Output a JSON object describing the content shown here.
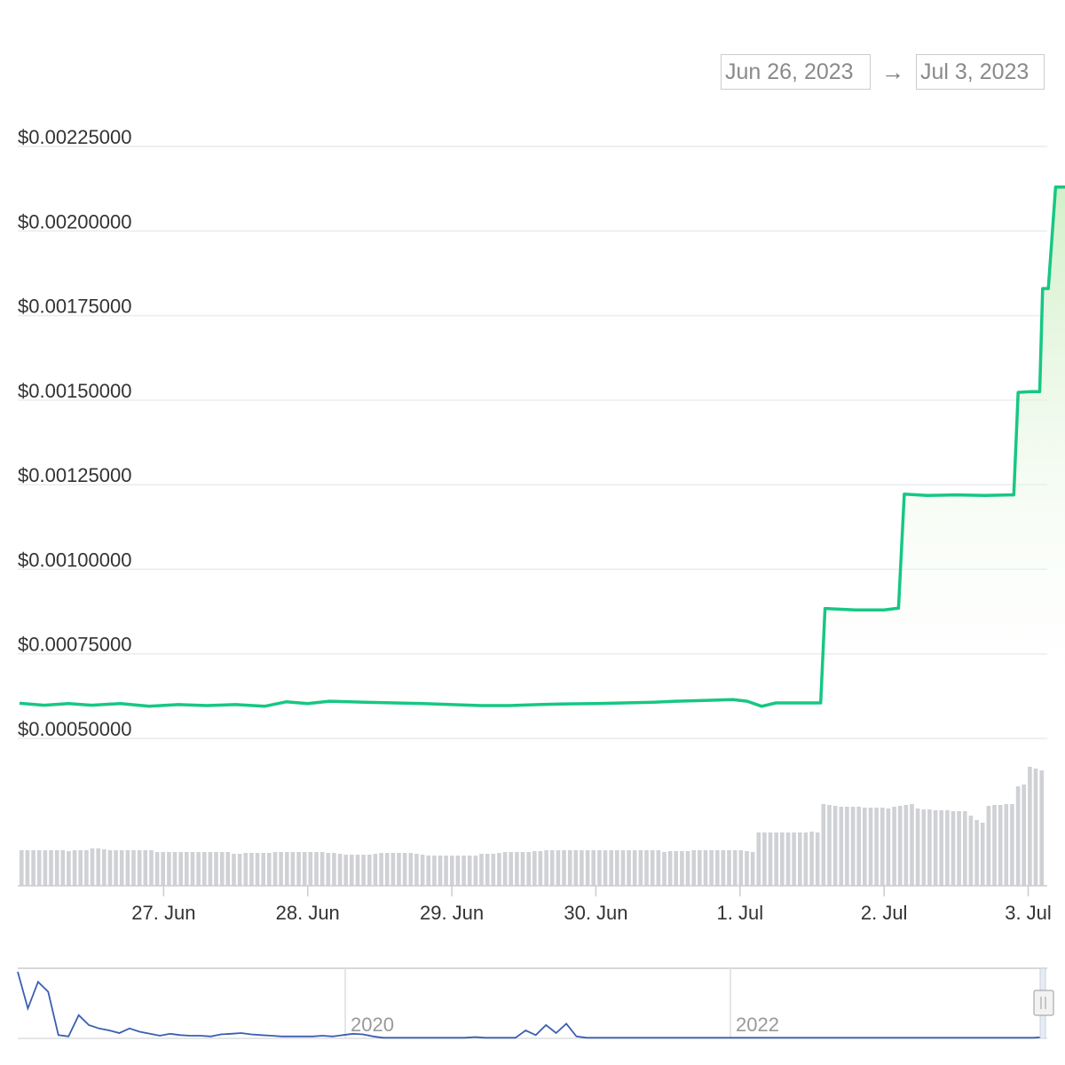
{
  "date_range": {
    "from": "Jun 26, 2023",
    "arrow": "→",
    "to": "Jul 3, 2023"
  },
  "colors": {
    "price_line": "#16c784",
    "area_top": "#d9f0d0",
    "volume_bar": "#cfd1d5",
    "navigator_line": "#3a5fb0",
    "grid": "#e9ecef"
  },
  "chart_data": [
    {
      "type": "area",
      "title": "",
      "xlabel": "",
      "ylabel": "",
      "ylim": [
        0.0005,
        0.00225
      ],
      "y_ticks": [
        "$0.00225000",
        "$0.00200000",
        "$0.00175000",
        "$0.00150000",
        "$0.00125000",
        "$0.00100000",
        "$0.00075000",
        "$0.00050000"
      ],
      "y_tick_values": [
        0.00225,
        0.002,
        0.00175,
        0.0015,
        0.00125,
        0.001,
        0.00075,
        0.0005
      ],
      "x_ticks": [
        "27. Jun",
        "28. Jun",
        "29. Jun",
        "30. Jun",
        "1. Jul",
        "2. Jul",
        "3. Jul"
      ],
      "x_tick_days": [
        1,
        2,
        3,
        4,
        5,
        6,
        7
      ],
      "x_range_days": [
        0.0,
        7.12
      ],
      "x_unit": "days after Jun 26, 2023 00:00",
      "grid": true,
      "series": [
        {
          "values": [
            [
              0.0,
              0.000604
            ],
            [
              0.17,
              0.000598
            ],
            [
              0.34,
              0.000603
            ],
            [
              0.5,
              0.000598
            ],
            [
              0.7,
              0.000603
            ],
            [
              0.9,
              0.000595
            ],
            [
              1.1,
              0.0006
            ],
            [
              1.3,
              0.000597
            ],
            [
              1.5,
              0.0006
            ],
            [
              1.7,
              0.000595
            ],
            [
              1.85,
              0.000608
            ],
            [
              2.0,
              0.000603
            ],
            [
              2.15,
              0.00061
            ],
            [
              2.4,
              0.000607
            ],
            [
              2.6,
              0.000605
            ],
            [
              2.8,
              0.000603
            ],
            [
              3.0,
              0.0006
            ],
            [
              3.2,
              0.000597
            ],
            [
              3.4,
              0.000597
            ],
            [
              3.6,
              0.0006
            ],
            [
              3.8,
              0.000602
            ],
            [
              4.0,
              0.000603
            ],
            [
              4.2,
              0.000605
            ],
            [
              4.4,
              0.000607
            ],
            [
              4.55,
              0.00061
            ],
            [
              4.75,
              0.000612
            ],
            [
              4.95,
              0.000615
            ],
            [
              5.05,
              0.00061
            ],
            [
              5.15,
              0.000595
            ],
            [
              5.25,
              0.000605
            ],
            [
              5.4,
              0.000605
            ],
            [
              5.56,
              0.000605
            ],
            [
              5.59,
              0.000884
            ],
            [
              5.8,
              0.00088
            ],
            [
              6.0,
              0.00088
            ],
            [
              6.1,
              0.000885
            ],
            [
              6.14,
              0.001222
            ],
            [
              6.3,
              0.001218
            ],
            [
              6.5,
              0.00122
            ],
            [
              6.7,
              0.001218
            ],
            [
              6.87,
              0.00122
            ],
            [
              6.9,
              0.00122
            ],
            [
              6.93,
              0.001523
            ],
            [
              7.02,
              0.001525
            ],
            [
              7.08,
              0.001525
            ],
            [
              7.1,
              0.00183
            ],
            [
              7.14,
              0.00183
            ],
            [
              7.19,
              0.00213
            ],
            [
              7.27,
              0.00213
            ]
          ]
        }
      ]
    },
    {
      "type": "bar",
      "title": "",
      "series": [
        {
          "name": "",
          "values": [
            0.4,
            0.4,
            0.4,
            0.4,
            0.4,
            0.4,
            0.4,
            0.4,
            0.39,
            0.4,
            0.4,
            0.4,
            0.42,
            0.42,
            0.41,
            0.4,
            0.4,
            0.4,
            0.4,
            0.4,
            0.4,
            0.4,
            0.4,
            0.38,
            0.38,
            0.38,
            0.38,
            0.38,
            0.38,
            0.38,
            0.38,
            0.38,
            0.38,
            0.38,
            0.38,
            0.38,
            0.36,
            0.36,
            0.37,
            0.37,
            0.37,
            0.37,
            0.37,
            0.38,
            0.38,
            0.38,
            0.38,
            0.38,
            0.38,
            0.38,
            0.38,
            0.38,
            0.37,
            0.37,
            0.36,
            0.35,
            0.35,
            0.35,
            0.35,
            0.35,
            0.36,
            0.37,
            0.37,
            0.37,
            0.37,
            0.37,
            0.37,
            0.36,
            0.35,
            0.34,
            0.34,
            0.34,
            0.34,
            0.34,
            0.34,
            0.34,
            0.34,
            0.34,
            0.36,
            0.36,
            0.36,
            0.37,
            0.38,
            0.38,
            0.38,
            0.38,
            0.38,
            0.39,
            0.39,
            0.4,
            0.4,
            0.4,
            0.4,
            0.4,
            0.4,
            0.4,
            0.4,
            0.4,
            0.4,
            0.4,
            0.4,
            0.4,
            0.4,
            0.4,
            0.4,
            0.4,
            0.4,
            0.4,
            0.4,
            0.38,
            0.39,
            0.39,
            0.39,
            0.39,
            0.4,
            0.4,
            0.4,
            0.4,
            0.4,
            0.4,
            0.4,
            0.4,
            0.4,
            0.39,
            0.38,
            0.6,
            0.6,
            0.6,
            0.6,
            0.6,
            0.6,
            0.6,
            0.6,
            0.6,
            0.61,
            0.6,
            0.92,
            0.91,
            0.9,
            0.89,
            0.89,
            0.89,
            0.89,
            0.88,
            0.88,
            0.88,
            0.88,
            0.87,
            0.89,
            0.9,
            0.91,
            0.92,
            0.87,
            0.86,
            0.86,
            0.85,
            0.85,
            0.85,
            0.84,
            0.84,
            0.84,
            0.79,
            0.74,
            0.71,
            0.9,
            0.91,
            0.91,
            0.92,
            0.92,
            1.12,
            1.14,
            1.34,
            1.32,
            1.3
          ]
        }
      ]
    },
    {
      "type": "line",
      "title": "",
      "x_ticks": [
        "2020",
        "2022"
      ],
      "values": [
        1.0,
        0.45,
        0.85,
        0.7,
        0.05,
        0.03,
        0.35,
        0.2,
        0.15,
        0.12,
        0.08,
        0.15,
        0.1,
        0.07,
        0.04,
        0.07,
        0.05,
        0.04,
        0.04,
        0.03,
        0.06,
        0.07,
        0.08,
        0.06,
        0.05,
        0.04,
        0.03,
        0.03,
        0.03,
        0.03,
        0.04,
        0.03,
        0.05,
        0.07,
        0.06,
        0.03,
        0.01,
        0.01,
        0.01,
        0.01,
        0.01,
        0.01,
        0.01,
        0.01,
        0.01,
        0.02,
        0.01,
        0.01,
        0.01,
        0.01,
        0.12,
        0.05,
        0.2,
        0.08,
        0.22,
        0.03,
        0.01,
        0.01,
        0.01,
        0.01,
        0.01,
        0.01,
        0.01,
        0.01,
        0.01,
        0.01,
        0.01,
        0.01,
        0.01,
        0.01,
        0.01,
        0.01,
        0.01,
        0.01,
        0.01,
        0.01,
        0.01,
        0.01,
        0.01,
        0.01,
        0.01,
        0.01,
        0.01,
        0.01,
        0.01,
        0.01,
        0.01,
        0.01,
        0.01,
        0.01,
        0.01,
        0.01,
        0.01,
        0.01,
        0.01,
        0.01,
        0.01,
        0.01,
        0.01,
        0.01,
        0.01,
        0.02
      ]
    }
  ]
}
